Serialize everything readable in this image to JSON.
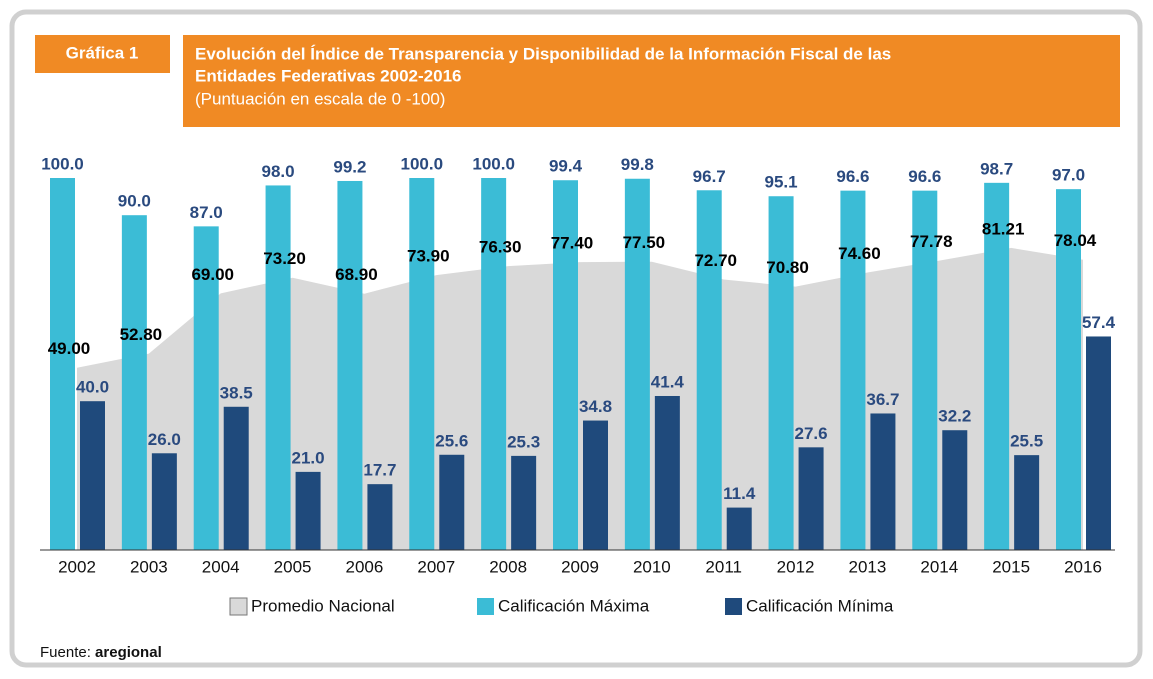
{
  "chart_data": {
    "type": "bar",
    "tab_label": "Gráfica 1",
    "title_line1": "Evolución del Índice de Transparencia y  Disponibilidad de la Información Fiscal de las",
    "title_line2": "Entidades Federativas 2002-2016",
    "subtitle": "(Puntuación en escala de 0 -100)",
    "categories": [
      "2002",
      "2003",
      "2004",
      "2005",
      "2006",
      "2007",
      "2008",
      "2009",
      "2010",
      "2011",
      "2012",
      "2013",
      "2014",
      "2015",
      "2016"
    ],
    "series": [
      {
        "name": "Promedio Nacional",
        "type": "area",
        "color": "#d9d9d9",
        "values": [
          49.0,
          52.8,
          69.0,
          73.2,
          68.9,
          73.9,
          76.3,
          77.4,
          77.5,
          72.7,
          70.8,
          74.6,
          77.78,
          81.21,
          78.04
        ],
        "value_labels": [
          "49.00",
          "52.80",
          "69.00",
          "73.20",
          "68.90",
          "73.90",
          "76.30",
          "77.40",
          "77.50",
          "72.70",
          "70.80",
          "74.60",
          "77.78",
          "81.21",
          "78.04"
        ]
      },
      {
        "name": "Calificación Máxima",
        "type": "bar",
        "color": "#3bbcd6",
        "values": [
          100.0,
          90.0,
          87.0,
          98.0,
          99.2,
          100.0,
          100.0,
          99.4,
          99.8,
          96.7,
          95.1,
          96.6,
          96.6,
          98.7,
          97.0
        ],
        "value_labels": [
          "100.0",
          "90.0",
          "87.0",
          "98.0",
          "99.2",
          "100.0",
          "100.0",
          "99.4",
          "99.8",
          "96.7",
          "95.1",
          "96.6",
          "96.6",
          "98.7",
          "97.0"
        ]
      },
      {
        "name": "Calificación Mínima",
        "type": "bar",
        "color": "#1f4a7c",
        "values": [
          40.0,
          26.0,
          38.5,
          21.0,
          17.7,
          25.6,
          25.3,
          34.8,
          41.4,
          11.4,
          27.6,
          36.7,
          32.2,
          25.5,
          57.4
        ],
        "value_labels": [
          "40.0",
          "26.0",
          "38.5",
          "21.0",
          "17.7",
          "25.6",
          "25.3",
          "34.8",
          "41.4",
          "11.4",
          "27.6",
          "36.7",
          "32.2",
          "25.5",
          "57.4"
        ]
      }
    ],
    "source_label": "Fuente:",
    "source_name": "aregional"
  }
}
